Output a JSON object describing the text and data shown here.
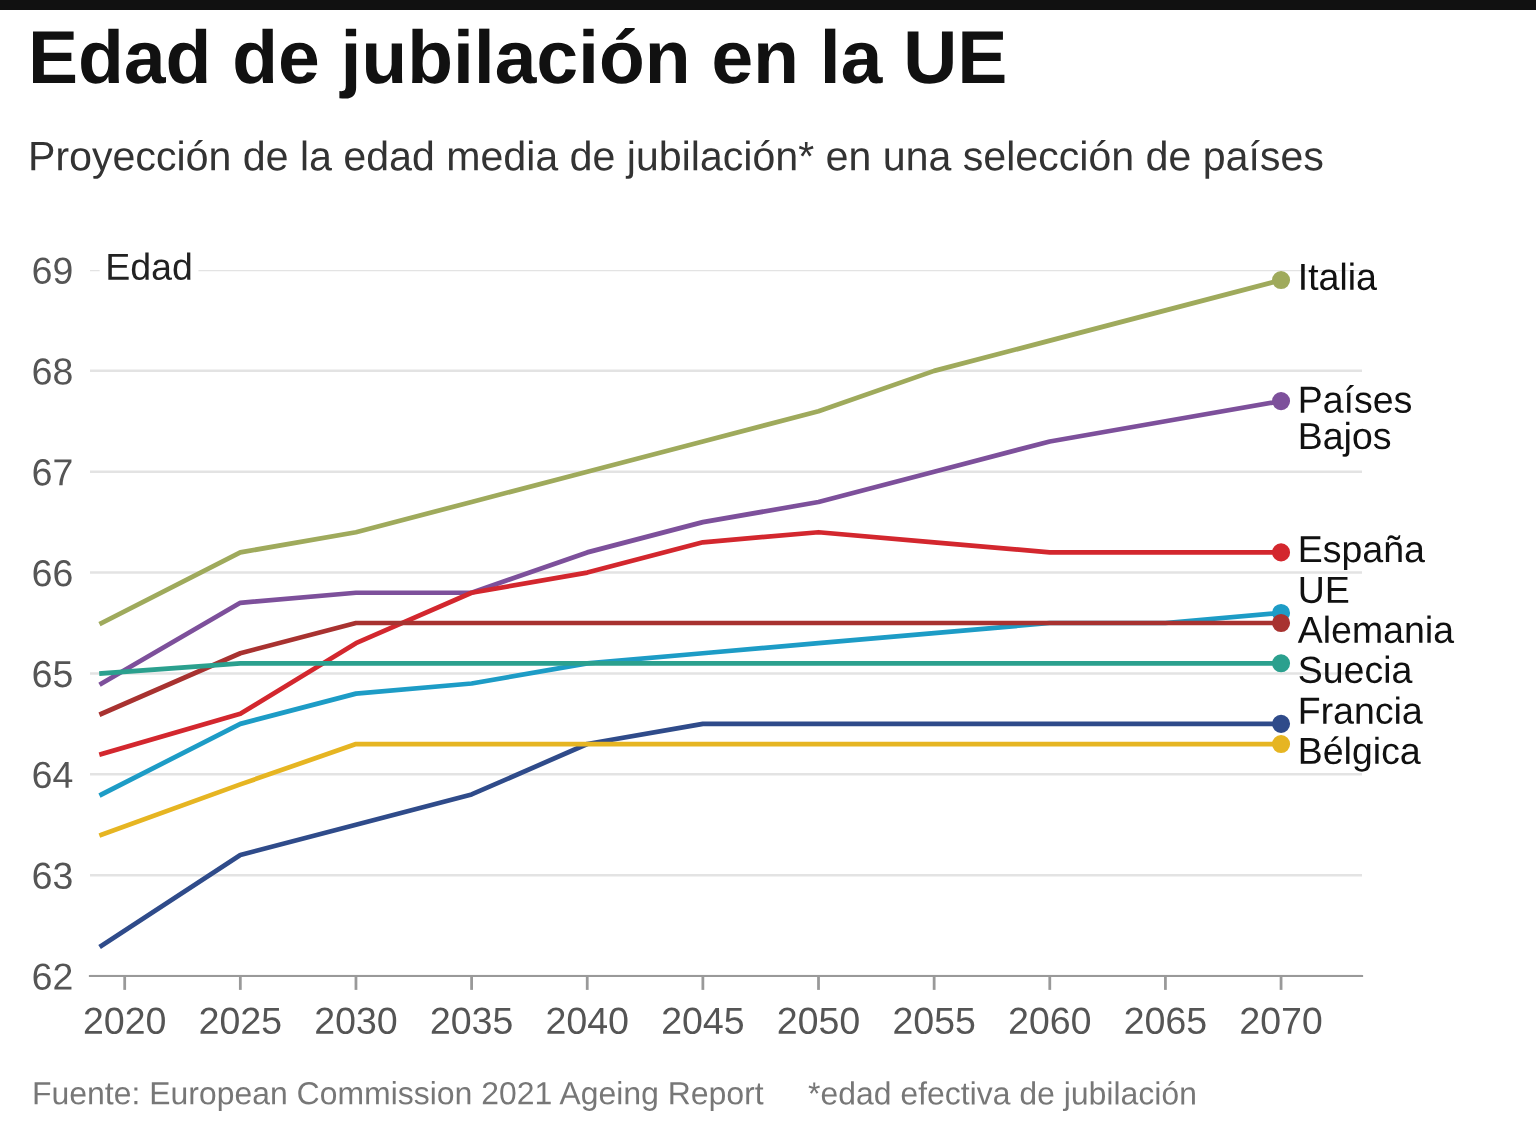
{
  "chart_data": {
    "type": "line",
    "title": "Edad de jubilación en la UE",
    "subtitle": "Proyección de la edad media de jubilación* en una selección de países",
    "ylabel": "Edad",
    "annotations": [
      "Fuente: European Commission 2021 Ageing Report",
      "*edad efectiva de jubilación"
    ],
    "x": [
      2019,
      2025,
      2030,
      2035,
      2040,
      2045,
      2050,
      2055,
      2060,
      2065,
      2070
    ],
    "series": [
      {
        "name": "Italia",
        "color": "#9faa5c",
        "values": [
          65.5,
          66.2,
          66.4,
          66.7,
          67.0,
          67.3,
          67.6,
          68.0,
          68.3,
          68.6,
          68.9
        ]
      },
      {
        "name": "Países\nBajos",
        "color": "#7d509b",
        "values": [
          64.9,
          65.7,
          65.8,
          65.8,
          66.2,
          66.5,
          66.7,
          67.0,
          67.3,
          67.5,
          67.7
        ]
      },
      {
        "name": "España",
        "color": "#d3272e",
        "values": [
          64.2,
          64.6,
          65.3,
          65.8,
          66.0,
          66.3,
          66.4,
          66.3,
          66.2,
          66.2,
          66.2
        ]
      },
      {
        "name": "UE",
        "color": "#1d9cc6",
        "values": [
          63.8,
          64.5,
          64.8,
          64.9,
          65.1,
          65.2,
          65.3,
          65.4,
          65.5,
          65.5,
          65.6
        ]
      },
      {
        "name": "Alemania",
        "color": "#a83230",
        "values": [
          64.6,
          65.2,
          65.5,
          65.5,
          65.5,
          65.5,
          65.5,
          65.5,
          65.5,
          65.5,
          65.5
        ]
      },
      {
        "name": "Suecia",
        "color": "#2ba08e",
        "values": [
          65.0,
          65.1,
          65.1,
          65.1,
          65.1,
          65.1,
          65.1,
          65.1,
          65.1,
          65.1,
          65.1
        ]
      },
      {
        "name": "Francia",
        "color": "#2f4b8a",
        "values": [
          62.3,
          63.2,
          63.5,
          63.8,
          64.3,
          64.5,
          64.5,
          64.5,
          64.5,
          64.5,
          64.5
        ]
      },
      {
        "name": "Bélgica",
        "color": "#e6b522",
        "values": [
          63.4,
          63.9,
          64.3,
          64.3,
          64.3,
          64.3,
          64.3,
          64.3,
          64.3,
          64.3,
          64.3
        ]
      }
    ],
    "xlim": [
      2018.5,
      2073.5
    ],
    "xticks": [
      2020,
      2025,
      2030,
      2035,
      2040,
      2045,
      2050,
      2055,
      2060,
      2065,
      2070
    ],
    "ylim": [
      62,
      69
    ],
    "yticks": [
      62,
      63,
      64,
      65,
      66,
      67,
      68,
      69
    ],
    "grid": "y",
    "legend": false,
    "line_style": "solid"
  }
}
